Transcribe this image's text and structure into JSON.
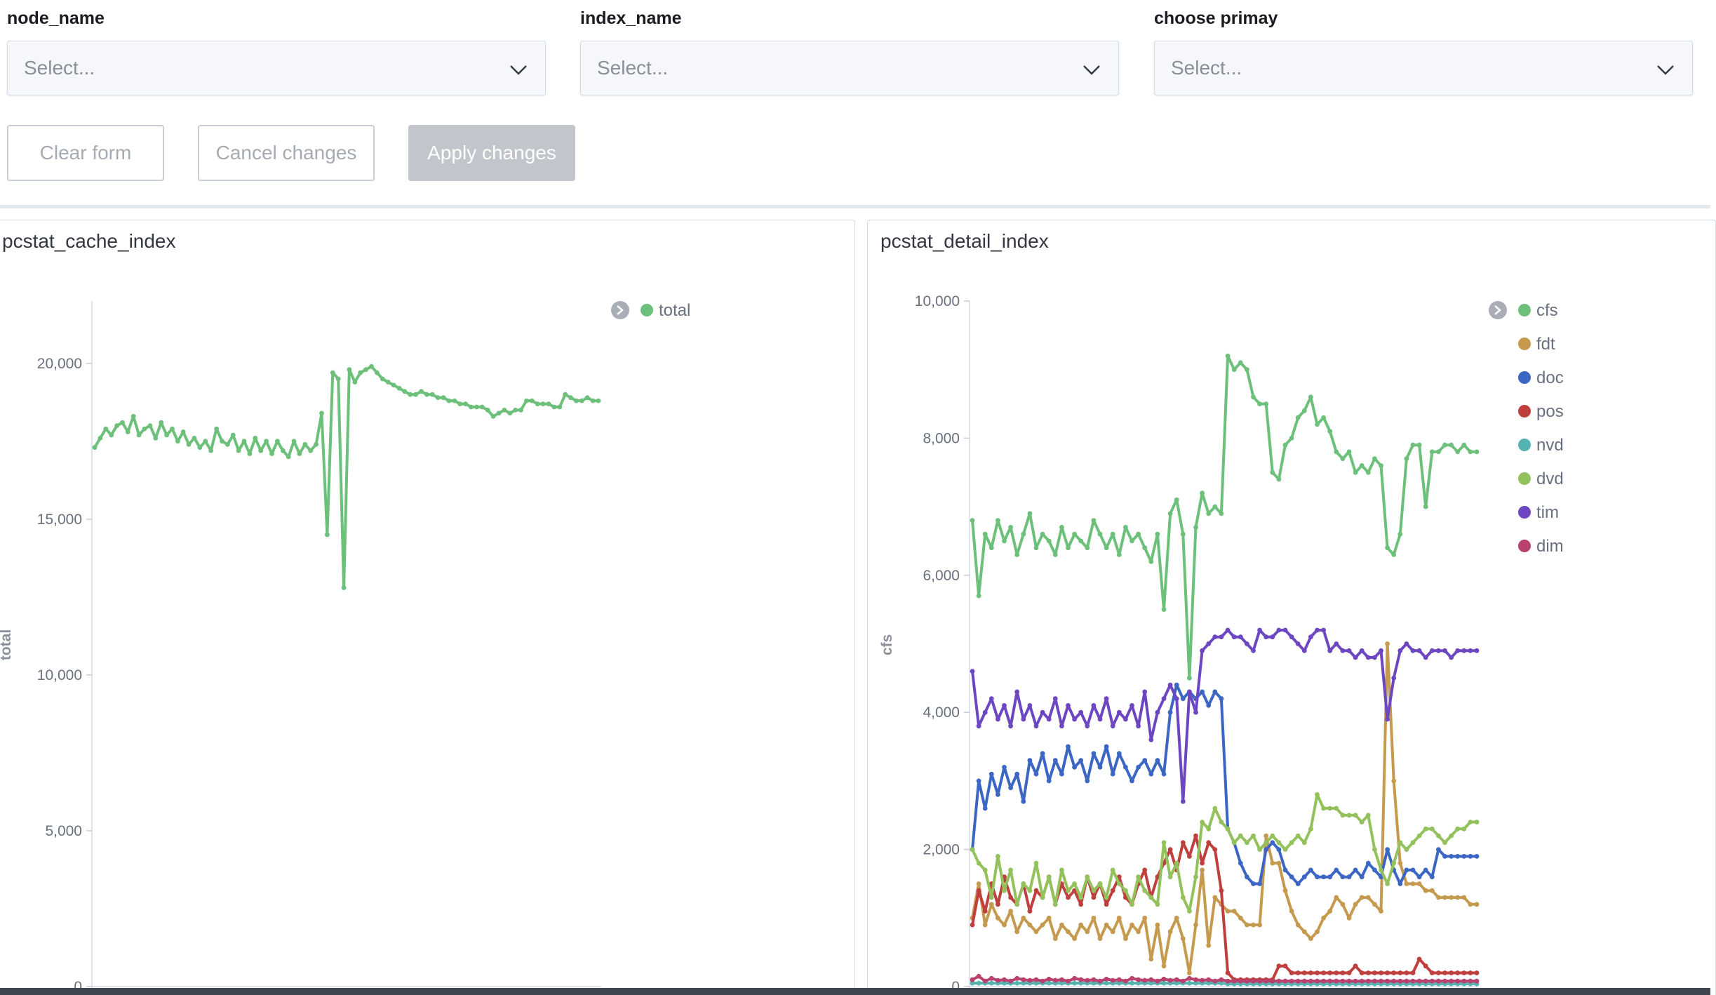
{
  "controls": {
    "node_name": {
      "label": "node_name",
      "placeholder": "Select..."
    },
    "index_name": {
      "label": "index_name",
      "placeholder": "Select..."
    },
    "choose_primay": {
      "label": "choose primay",
      "placeholder": "Select..."
    },
    "clear_label": "Clear form",
    "cancel_label": "Cancel changes",
    "apply_label": "Apply changes"
  },
  "icons": {
    "dropdown": "chevron-down-icon",
    "legend_toggle": "chevron-right-circle-icon"
  },
  "chart_data": [
    {
      "type": "line",
      "title": "pcstat_cache_index",
      "ylabel": "total",
      "xlabel": "",
      "ylim": [
        0,
        22000
      ],
      "yticks": [
        0,
        5000,
        10000,
        15000,
        20000
      ],
      "ytick_labels": [
        "0",
        "5,000",
        "10,000",
        "15,000",
        "20,000"
      ],
      "grid": false,
      "legend": "top-right",
      "series": [
        {
          "name": "total",
          "color": "#6cc07a",
          "values": [
            17300,
            17600,
            17900,
            17700,
            18000,
            18100,
            17800,
            18300,
            17700,
            17900,
            18000,
            17600,
            18100,
            17700,
            17900,
            17500,
            17800,
            17400,
            17600,
            17300,
            17500,
            17200,
            17900,
            17500,
            17400,
            17700,
            17200,
            17500,
            17100,
            17600,
            17200,
            17500,
            17100,
            17500,
            17200,
            17000,
            17500,
            17100,
            17400,
            17200,
            17400,
            18400,
            14500,
            19700,
            19500,
            12800,
            19800,
            19400,
            19700,
            19800,
            19900,
            19700,
            19500,
            19400,
            19300,
            19200,
            19100,
            19000,
            19000,
            19100,
            19000,
            19000,
            18900,
            18900,
            18800,
            18800,
            18700,
            18700,
            18600,
            18600,
            18600,
            18500,
            18300,
            18400,
            18500,
            18400,
            18500,
            18500,
            18800,
            18800,
            18700,
            18700,
            18700,
            18600,
            18600,
            19000,
            18900,
            18800,
            18800,
            18900,
            18800,
            18800
          ]
        }
      ]
    },
    {
      "type": "line",
      "title": "pcstat_detail_index",
      "ylabel": "cfs",
      "xlabel": "",
      "ylim": [
        0,
        10000
      ],
      "yticks": [
        0,
        2000,
        4000,
        6000,
        8000,
        10000
      ],
      "ytick_labels": [
        "0",
        "2,000",
        "4,000",
        "6,000",
        "8,000",
        "10,000"
      ],
      "grid": false,
      "legend": "top-right",
      "series": [
        {
          "name": "cfs",
          "color": "#6cc07a",
          "values": [
            6800,
            5700,
            6600,
            6400,
            6800,
            6500,
            6700,
            6300,
            6600,
            6900,
            6400,
            6600,
            6500,
            6300,
            6700,
            6400,
            6600,
            6500,
            6400,
            6800,
            6600,
            6400,
            6600,
            6300,
            6700,
            6500,
            6600,
            6400,
            6200,
            6600,
            5500,
            6900,
            7100,
            6600,
            4500,
            6700,
            7200,
            6900,
            7000,
            6900,
            9200,
            9000,
            9100,
            9000,
            8600,
            8500,
            8500,
            7500,
            7400,
            7900,
            8000,
            8300,
            8400,
            8600,
            8200,
            8300,
            8100,
            7800,
            7700,
            7800,
            7500,
            7600,
            7500,
            7700,
            7600,
            6400,
            6300,
            6600,
            7700,
            7900,
            7900,
            7000,
            7800,
            7800,
            7900,
            7900,
            7800,
            7900,
            7800,
            7800
          ]
        },
        {
          "name": "fdt",
          "color": "#c59a4e",
          "values": [
            1000,
            1500,
            900,
            1200,
            1000,
            900,
            1100,
            800,
            1000,
            900,
            800,
            900,
            1000,
            700,
            900,
            800,
            700,
            900,
            800,
            1000,
            700,
            900,
            800,
            1000,
            700,
            900,
            800,
            1000,
            400,
            900,
            300,
            800,
            1000,
            700,
            200,
            900,
            1700,
            600,
            1300,
            1200,
            1100,
            1100,
            1000,
            900,
            900,
            900,
            2200,
            1800,
            1800,
            1400,
            1100,
            900,
            800,
            700,
            800,
            1000,
            1100,
            1300,
            1200,
            1000,
            1200,
            1300,
            1300,
            1200,
            1100,
            5000,
            3000,
            1800,
            1500,
            1500,
            1500,
            1400,
            1400,
            1300,
            1300,
            1300,
            1300,
            1300,
            1200,
            1200
          ]
        },
        {
          "name": "doc",
          "color": "#3b66c4",
          "values": [
            2000,
            3000,
            2600,
            3100,
            2800,
            3200,
            2900,
            3100,
            2700,
            3300,
            3100,
            3400,
            3000,
            3300,
            3100,
            3500,
            3200,
            3300,
            3000,
            3400,
            3200,
            3500,
            3100,
            3400,
            3200,
            3000,
            3200,
            3300,
            3100,
            3300,
            3100,
            4000,
            4400,
            4200,
            4300,
            4200,
            4300,
            4100,
            4300,
            4200,
            2300,
            2100,
            1800,
            1600,
            1500,
            1500,
            2000,
            2100,
            2000,
            1700,
            1600,
            1500,
            1600,
            1700,
            1600,
            1600,
            1600,
            1700,
            1600,
            1600,
            1700,
            1600,
            1800,
            1700,
            1600,
            2000,
            1700,
            1500,
            1700,
            1700,
            1600,
            1700,
            1600,
            2000,
            1900,
            1900,
            1900,
            1900,
            1900,
            1900
          ]
        },
        {
          "name": "pos",
          "color": "#bf3e3e",
          "values": [
            900,
            1400,
            1100,
            1500,
            1200,
            1600,
            1300,
            1200,
            1500,
            1100,
            1400,
            1300,
            1600,
            1200,
            1500,
            1300,
            1400,
            1200,
            1600,
            1300,
            1500,
            1200,
            1400,
            1600,
            1300,
            1200,
            1500,
            1700,
            1300,
            1600,
            1800,
            2000,
            1700,
            2100,
            1900,
            2200,
            1800,
            2100,
            2000,
            1400,
            200,
            100,
            100,
            100,
            100,
            100,
            100,
            100,
            300,
            300,
            200,
            200,
            200,
            200,
            200,
            200,
            200,
            200,
            200,
            200,
            300,
            200,
            200,
            200,
            200,
            200,
            200,
            200,
            200,
            200,
            400,
            300,
            200,
            200,
            200,
            200,
            200,
            200,
            200,
            200
          ]
        },
        {
          "name": "nvd",
          "color": "#54b3b0",
          "values": [
            50,
            50,
            50,
            50,
            50,
            50,
            50,
            50,
            50,
            50,
            50,
            50,
            50,
            50,
            50,
            50,
            50,
            50,
            50,
            50,
            50,
            50,
            50,
            50,
            50,
            50,
            50,
            50,
            50,
            50,
            50,
            50,
            50,
            50,
            50,
            50,
            50,
            50,
            50,
            50,
            40,
            40,
            40,
            40,
            40,
            40,
            40,
            40,
            40,
            40,
            40,
            40,
            40,
            40,
            40,
            40,
            40,
            40,
            40,
            40,
            40,
            40,
            40,
            40,
            40,
            40,
            40,
            40,
            40,
            40,
            40,
            40,
            40,
            40,
            40,
            40,
            40,
            40,
            40,
            40
          ]
        },
        {
          "name": "dvd",
          "color": "#93c15b",
          "values": [
            2000,
            1800,
            1700,
            1300,
            1900,
            1400,
            1700,
            1200,
            1500,
            1400,
            1800,
            1300,
            1600,
            1200,
            1700,
            1400,
            1500,
            1300,
            1600,
            1400,
            1500,
            1300,
            1700,
            1500,
            1400,
            1200,
            1600,
            1400,
            1300,
            1200,
            2100,
            1600,
            1800,
            1300,
            1100,
            1600,
            2400,
            2300,
            2600,
            2400,
            2300,
            2100,
            2200,
            2100,
            2200,
            2000,
            2100,
            2200,
            2100,
            2000,
            2100,
            2200,
            2100,
            2300,
            2800,
            2600,
            2600,
            2600,
            2500,
            2500,
            2500,
            2400,
            2500,
            2000,
            1700,
            1500,
            1800,
            2100,
            2000,
            2100,
            2200,
            2300,
            2300,
            2200,
            2100,
            2200,
            2300,
            2300,
            2400,
            2400
          ]
        },
        {
          "name": "tim",
          "color": "#6d46c2",
          "values": [
            4600,
            3800,
            4000,
            4200,
            3900,
            4100,
            3800,
            4300,
            3900,
            4100,
            3800,
            4000,
            3900,
            4200,
            3800,
            4100,
            3900,
            4000,
            3800,
            4100,
            3900,
            4200,
            3800,
            4000,
            3900,
            4100,
            3800,
            4300,
            3600,
            4000,
            4200,
            4400,
            4200,
            2700,
            4300,
            4000,
            4900,
            5000,
            5100,
            5100,
            5200,
            5100,
            5100,
            5000,
            4900,
            5200,
            5100,
            5100,
            5200,
            5200,
            5100,
            5000,
            4900,
            5100,
            5200,
            5200,
            4900,
            5000,
            4900,
            4900,
            4800,
            4900,
            4800,
            4800,
            4900,
            3900,
            4500,
            4900,
            5000,
            4900,
            4900,
            4800,
            4900,
            4900,
            4900,
            4800,
            4900,
            4900,
            4900,
            4900
          ]
        },
        {
          "name": "dim",
          "color": "#b8416e",
          "values": [
            100,
            150,
            80,
            120,
            90,
            100,
            80,
            120,
            100,
            90,
            100,
            80,
            110,
            90,
            100,
            80,
            120,
            100,
            90,
            100,
            80,
            110,
            90,
            100,
            80,
            120,
            100,
            90,
            100,
            80,
            110,
            90,
            100,
            80,
            120,
            100,
            90,
            100,
            80,
            100,
            80,
            80,
            80,
            80,
            80,
            80,
            80,
            80,
            80,
            80,
            80,
            80,
            80,
            80,
            80,
            80,
            80,
            80,
            80,
            80,
            80,
            80,
            80,
            80,
            80,
            80,
            80,
            80,
            80,
            80,
            80,
            80,
            80,
            80,
            80,
            80,
            80,
            80,
            80,
            80
          ]
        }
      ]
    }
  ]
}
